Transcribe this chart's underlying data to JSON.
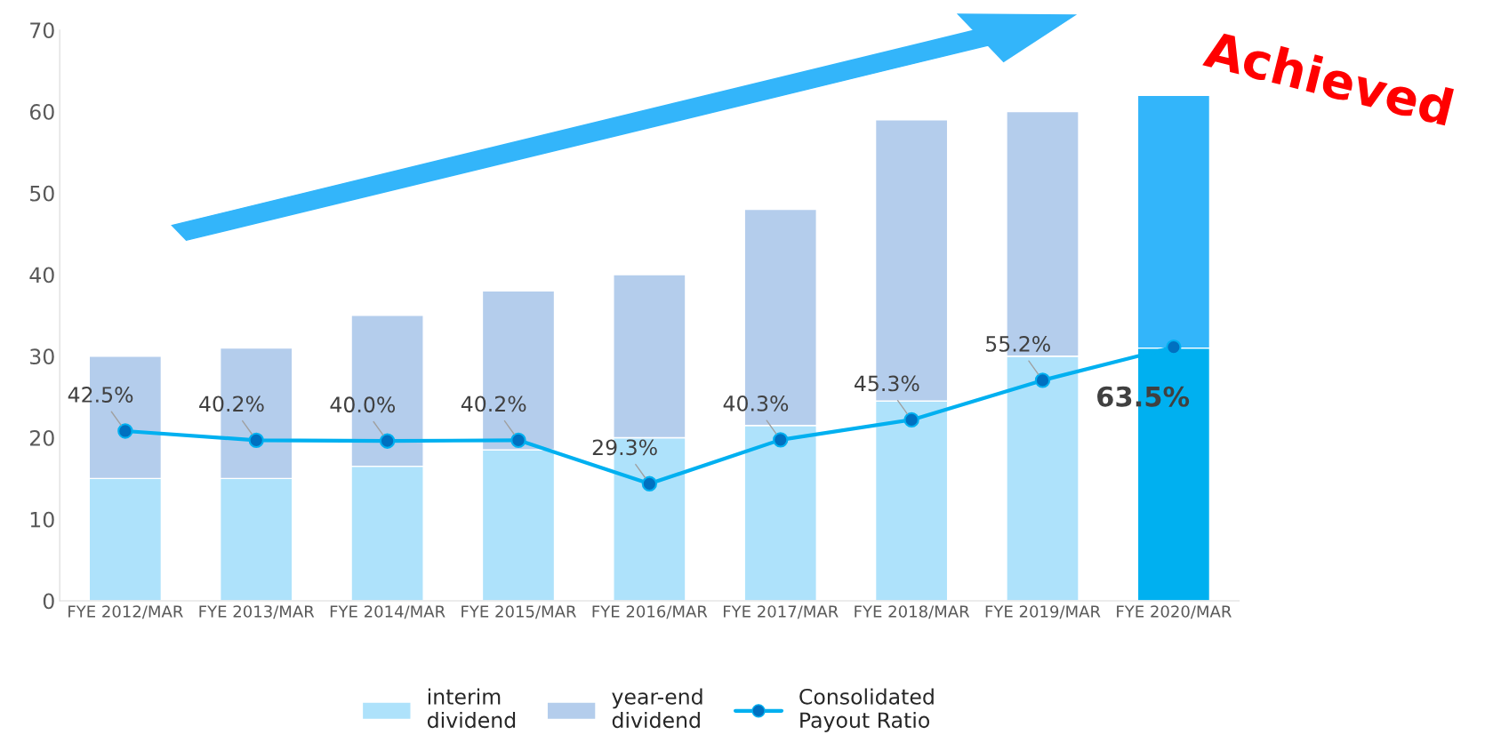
{
  "chart_data": {
    "type": "bar",
    "stacked": true,
    "categories": [
      "FYE 2012/MAR",
      "FYE 2013/MAR",
      "FYE 2014/MAR",
      "FYE 2015/MAR",
      "FYE 2016/MAR",
      "FYE 2017/MAR",
      "FYE 2018/MAR",
      "FYE 2019/MAR",
      "FYE 2020/MAR"
    ],
    "series": [
      {
        "name": "interim\ndividend",
        "color": "#aee2fb",
        "colors": [
          "#aee2fb",
          "#aee2fb",
          "#aee2fb",
          "#aee2fb",
          "#aee2fb",
          "#aee2fb",
          "#aee2fb",
          "#aee2fb",
          "#00b0f0"
        ],
        "values": [
          15,
          15,
          16.5,
          18.5,
          20,
          21.5,
          24.5,
          30,
          31
        ]
      },
      {
        "name": "year-end\ndividend",
        "color": "#b4cdec",
        "colors": [
          "#b4cdec",
          "#b4cdec",
          "#b4cdec",
          "#b4cdec",
          "#b4cdec",
          "#b4cdec",
          "#b4cdec",
          "#b4cdec",
          "#33b5fa"
        ],
        "values": [
          15,
          16,
          18.5,
          19.5,
          20,
          26.5,
          34.5,
          30,
          31
        ]
      },
      {
        "name": "Consolidated\nPayout Ratio",
        "type": "line",
        "axis": "y2",
        "color": "#00b0f0",
        "marker": "circle",
        "line_style": "solid",
        "value_labels": [
          "42.5%",
          "40.2%",
          "40.0%",
          "40.2%",
          "29.3%",
          "40.3%",
          "45.3%",
          "55.2%",
          "63.5%"
        ],
        "values": [
          42.5,
          40.2,
          40.0,
          40.2,
          29.3,
          40.3,
          45.3,
          55.2,
          63.5
        ]
      }
    ],
    "ylim": [
      0,
      70
    ],
    "yticks": [
      0,
      10,
      20,
      30,
      40,
      50,
      60,
      70
    ],
    "grid": false,
    "legend": "bottom",
    "annotations": [
      "Achieved"
    ]
  }
}
